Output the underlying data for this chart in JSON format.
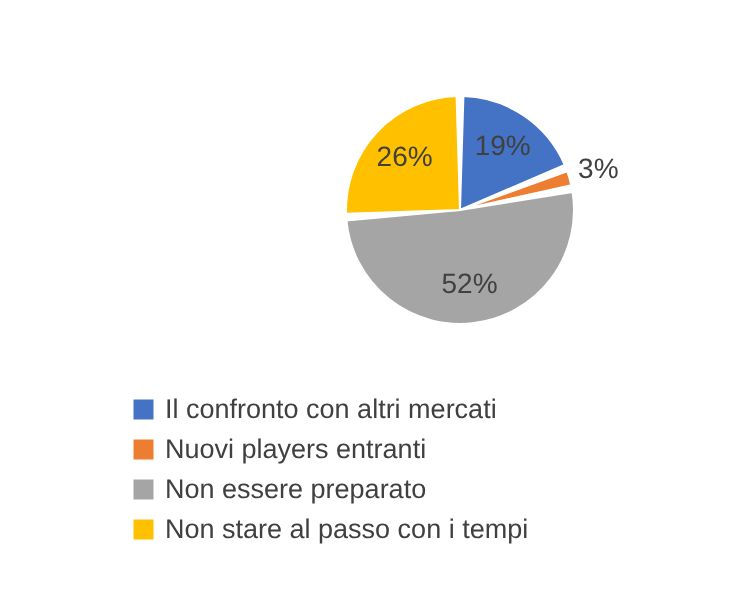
{
  "chart_data": {
    "type": "pie",
    "categories": [
      "Il confronto con altri mercati",
      "Nuovi players entranti",
      "Non essere preparato",
      "Non stare al passo con i tempi"
    ],
    "values": [
      19,
      3,
      52,
      26
    ],
    "value_labels": [
      "19%",
      "3%",
      "52%",
      "26%"
    ],
    "colors": [
      "#4472c4",
      "#ed7d31",
      "#a5a5a5",
      "#ffc000"
    ],
    "legend": "bottom"
  }
}
